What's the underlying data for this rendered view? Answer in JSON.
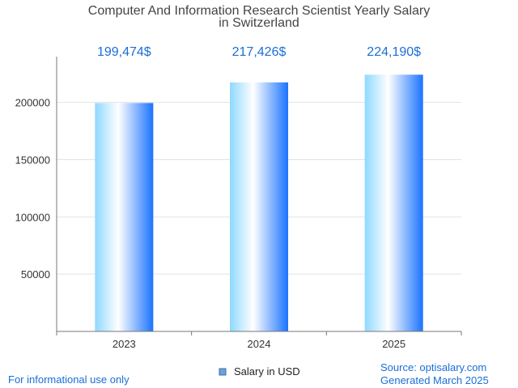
{
  "chart_data": {
    "type": "bar",
    "title_lines": [
      "Computer And Information Research Scientist Yearly Salary",
      "in Switzerland"
    ],
    "categories": [
      "2023",
      "2024",
      "2025"
    ],
    "series": [
      {
        "name": "Salary in USD",
        "values": [
          199474,
          217426,
          224190
        ]
      }
    ],
    "value_labels": [
      "199,474$",
      "217,426$",
      "224,190$"
    ],
    "y_ticks": [
      50000,
      100000,
      150000,
      200000
    ],
    "ylim": [
      0,
      240000
    ],
    "grid": true,
    "legend_position": "bottom-center",
    "colors": {
      "bar_light": "#8fd8ff",
      "bar_white": "#ffffff",
      "bar_dark": "#1a73ff",
      "value_label": "#1a6fd6",
      "legend_swatch": "#6fa0d8"
    }
  },
  "footer": {
    "left": "For informational use only",
    "source": "Source: optisalary.com",
    "generated": "Generated March 2025"
  }
}
